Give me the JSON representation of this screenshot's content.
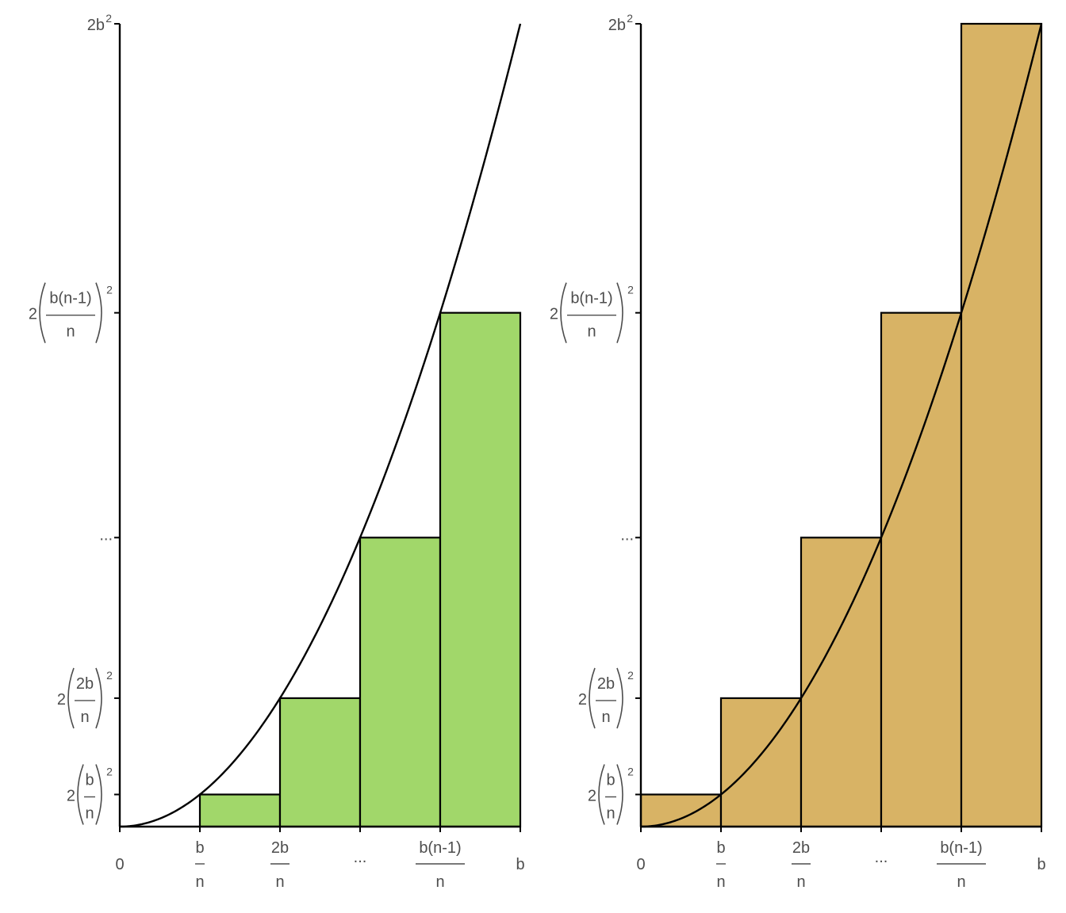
{
  "colors": {
    "lower_sum_fill": "#a1d76a",
    "upper_sum_fill": "#d8b365",
    "curve": "#000000",
    "text": "#4d4d4d"
  },
  "chart_data": [
    {
      "type": "bar",
      "variant": "riemann-lower-sum",
      "function": "y = 2x^2",
      "x_tick_labels": [
        {
          "x": 0,
          "text": "0"
        },
        {
          "x": 1,
          "num": "b",
          "den": "n"
        },
        {
          "x": 2,
          "num": "2b",
          "den": "n"
        },
        {
          "x": 3,
          "text": "..."
        },
        {
          "x": 4,
          "num": "b(n-1)",
          "den": "n"
        },
        {
          "x": 5,
          "text": "b"
        }
      ],
      "y_tick_labels": [
        {
          "y": 2,
          "coef": "2",
          "num": "b",
          "den": "n",
          "power": "2"
        },
        {
          "y": 8,
          "coef": "2",
          "num": "2b",
          "den": "n",
          "power": "2"
        },
        {
          "y": 18,
          "text": "..."
        },
        {
          "y": 32,
          "coef": "2",
          "num": "b(n-1)",
          "den": "n",
          "power": "2"
        },
        {
          "y": 50,
          "base": "2b",
          "power": "2"
        }
      ],
      "bars": [
        {
          "x0": 0,
          "x1": 1,
          "height": 0
        },
        {
          "x0": 1,
          "x1": 2,
          "height": 2
        },
        {
          "x0": 2,
          "x1": 3,
          "height": 8
        },
        {
          "x0": 3,
          "x1": 4,
          "height": 18
        },
        {
          "x0": 4,
          "x1": 5,
          "height": 32
        }
      ],
      "xlim": [
        0,
        5
      ],
      "ylim": [
        0,
        50
      ],
      "grid": false,
      "fill": "#a1d76a"
    },
    {
      "type": "bar",
      "variant": "riemann-upper-sum",
      "function": "y = 2x^2",
      "x_tick_labels": [
        {
          "x": 0,
          "text": "0"
        },
        {
          "x": 1,
          "num": "b",
          "den": "n"
        },
        {
          "x": 2,
          "num": "2b",
          "den": "n"
        },
        {
          "x": 3,
          "text": "..."
        },
        {
          "x": 4,
          "num": "b(n-1)",
          "den": "n"
        },
        {
          "x": 5,
          "text": "b"
        }
      ],
      "y_tick_labels": [
        {
          "y": 2,
          "coef": "2",
          "num": "b",
          "den": "n",
          "power": "2"
        },
        {
          "y": 8,
          "coef": "2",
          "num": "2b",
          "den": "n",
          "power": "2"
        },
        {
          "y": 18,
          "text": "..."
        },
        {
          "y": 32,
          "coef": "2",
          "num": "b(n-1)",
          "den": "n",
          "power": "2"
        },
        {
          "y": 50,
          "base": "2b",
          "power": "2"
        }
      ],
      "bars": [
        {
          "x0": 0,
          "x1": 1,
          "height": 2
        },
        {
          "x0": 1,
          "x1": 2,
          "height": 8
        },
        {
          "x0": 2,
          "x1": 3,
          "height": 18
        },
        {
          "x0": 3,
          "x1": 4,
          "height": 32
        },
        {
          "x0": 4,
          "x1": 5,
          "height": 50
        }
      ],
      "xlim": [
        0,
        5
      ],
      "ylim": [
        0,
        50
      ],
      "grid": false,
      "fill": "#d8b365"
    }
  ]
}
